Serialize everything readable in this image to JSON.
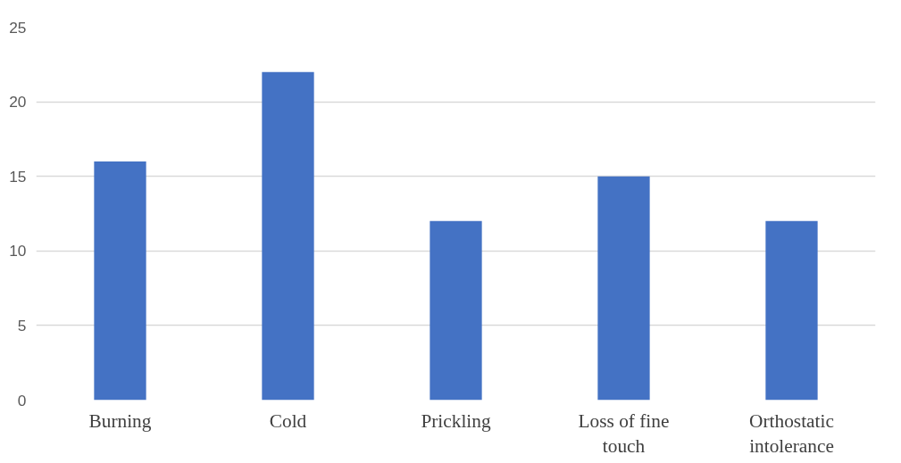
{
  "chart_data": {
    "type": "bar",
    "categories": [
      "Burning",
      "Cold",
      "Prickling",
      "Loss of fine touch",
      "Orthostatic intolerance"
    ],
    "values": [
      16,
      22,
      12,
      15,
      12
    ],
    "color": "#4472c4",
    "ylim": [
      0,
      25
    ],
    "yticks": [
      0,
      5,
      10,
      15,
      20,
      25
    ],
    "grid": "y"
  }
}
